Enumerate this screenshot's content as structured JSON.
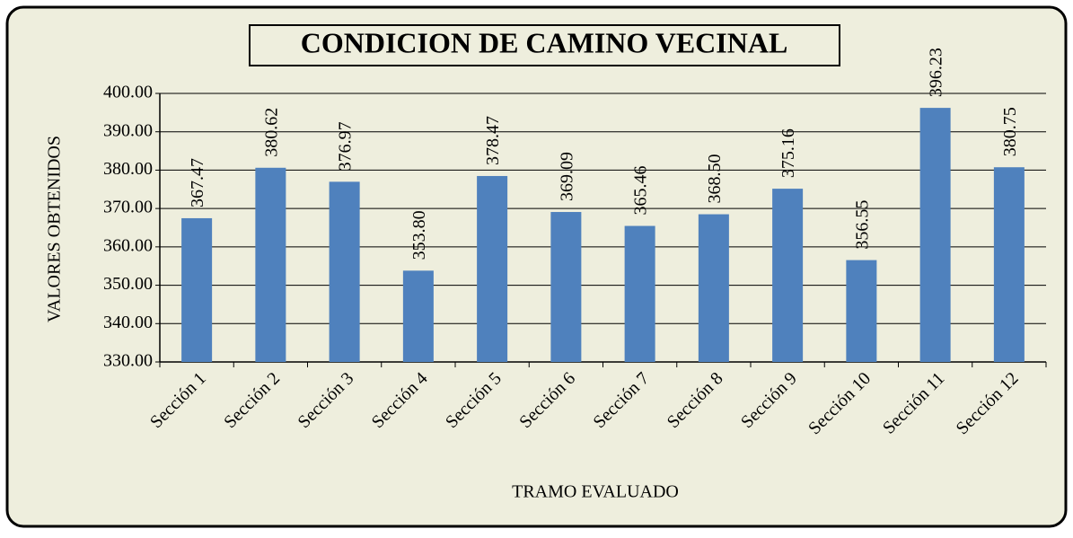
{
  "chart_data": {
    "type": "bar",
    "title": "CONDICION DE CAMINO VECINAL",
    "x_label": "TRAMO EVALUADO",
    "y_label": "VALORES OBTENIDOS",
    "categories": [
      "Sección 1",
      "Sección 2",
      "Sección 3",
      "Sección 4",
      "Sección 5",
      "Sección 6",
      "Sección 7",
      "Sección 8",
      "Sección 9",
      "Sección 10",
      "Sección 11",
      "Sección 12"
    ],
    "values": [
      367.47,
      380.62,
      376.97,
      353.8,
      378.47,
      369.09,
      365.46,
      368.5,
      375.16,
      356.55,
      396.23,
      380.75
    ],
    "value_labels": [
      "367.47",
      "380.62",
      "376.97",
      "353.80",
      "378.47",
      "369.09",
      "365.46",
      "368.50",
      "375.16",
      "356.55",
      "396.23",
      "380.75"
    ],
    "color": "#4f81bd",
    "ylim": [
      330,
      400
    ],
    "yticks": [
      {
        "value": 330,
        "label": "330.00"
      },
      {
        "value": 340,
        "label": "340.00"
      },
      {
        "value": 350,
        "label": "350.00"
      },
      {
        "value": 360,
        "label": "360.00"
      },
      {
        "value": 370,
        "label": "370.00"
      },
      {
        "value": 380,
        "label": "380.00"
      },
      {
        "value": 390,
        "label": "390.00"
      },
      {
        "value": 400,
        "label": "400.00"
      }
    ],
    "grid": true
  }
}
